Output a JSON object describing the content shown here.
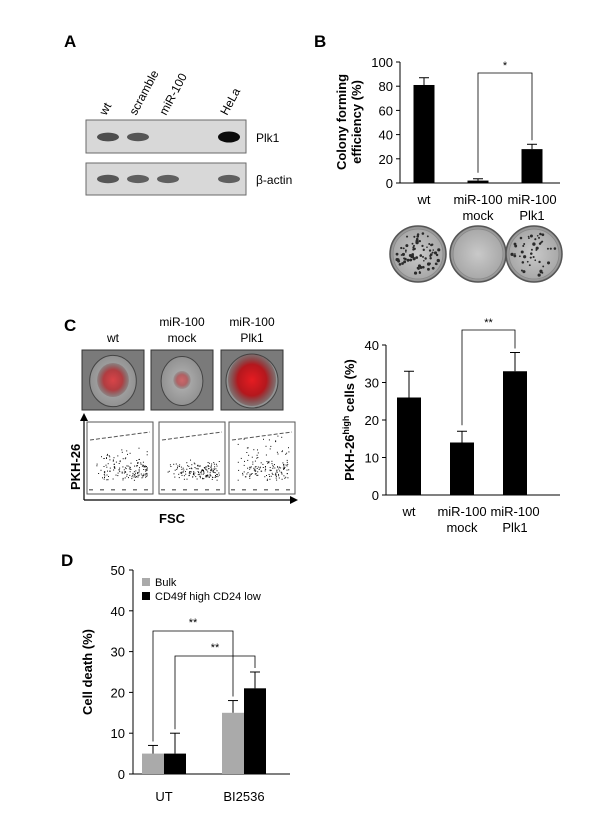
{
  "panels": {
    "A": {
      "letter": "A",
      "lanes": [
        "wt",
        "scramble",
        "miR-100",
        "HeLa"
      ],
      "blots": [
        {
          "label": "Plk1",
          "band_intensity": [
            0.55,
            0.5,
            0.0,
            1.0
          ]
        },
        {
          "label": "β-actin",
          "band_intensity": [
            0.5,
            0.45,
            0.45,
            0.45
          ]
        }
      ]
    },
    "B": {
      "letter": "B",
      "plates": [
        "wt",
        "miR-100 mock",
        "miR-100 Plk1"
      ]
    },
    "C": {
      "letter": "C",
      "cell_images": [
        {
          "label_lines": [
            "wt"
          ]
        },
        {
          "label_lines": [
            "miR-100",
            "mock"
          ]
        },
        {
          "label_lines": [
            "miR-100",
            "Plk1"
          ]
        }
      ],
      "flow_ylabel": "PKH-26",
      "flow_xlabel": "FSC"
    },
    "D": {
      "letter": "D"
    }
  },
  "chart_data": [
    {
      "id": "B",
      "type": "bar",
      "categories": [
        [
          "wt"
        ],
        [
          "miR-100",
          "mock"
        ],
        [
          "miR-100",
          "Plk1"
        ]
      ],
      "values": [
        81,
        2,
        28
      ],
      "errors": [
        6,
        1.5,
        4
      ],
      "ylabel_lines": [
        "Colony forming",
        "efficiency (%)"
      ],
      "ylim": [
        0,
        100
      ],
      "yticks": [
        "0",
        "20",
        "40",
        "60",
        "80",
        "100"
      ],
      "significance": [
        {
          "from": 1,
          "to": 2,
          "label": "*"
        }
      ],
      "bar_color": "#000000"
    },
    {
      "id": "C",
      "type": "bar",
      "categories": [
        [
          "wt"
        ],
        [
          "miR-100",
          "mock"
        ],
        [
          "miR-100",
          "Plk1"
        ]
      ],
      "values": [
        26,
        14,
        33
      ],
      "errors": [
        7,
        3,
        5
      ],
      "ylabel": {
        "base": "PKH-26",
        "sup": "high",
        "rest": " cells (%)"
      },
      "ylim": [
        0,
        40
      ],
      "yticks": [
        "0",
        "10",
        "20",
        "30",
        "40"
      ],
      "significance": [
        {
          "from": 1,
          "to": 2,
          "label": "**"
        }
      ],
      "bar_color": "#000000"
    },
    {
      "id": "D",
      "type": "bar",
      "categories": [
        "UT",
        "BI2536"
      ],
      "series": [
        {
          "name": "Bulk",
          "values": [
            5,
            15
          ],
          "errors": [
            2,
            3
          ],
          "color": "#aaaaaa"
        },
        {
          "name": "CD49f high CD24 low",
          "values": [
            5,
            21
          ],
          "errors": [
            5,
            4
          ],
          "color": "#000000"
        }
      ],
      "ylabel": "Cell death (%)",
      "ylim": [
        0,
        50
      ],
      "yticks": [
        "0",
        "10",
        "20",
        "30",
        "40",
        "50"
      ],
      "legend_position": "top-left",
      "significance": [
        {
          "from_group": 0,
          "from_series": 0,
          "to_group": 1,
          "to_series": 0,
          "label": "**"
        },
        {
          "from_group": 0,
          "from_series": 1,
          "to_group": 1,
          "to_series": 1,
          "label": "**"
        }
      ]
    }
  ]
}
